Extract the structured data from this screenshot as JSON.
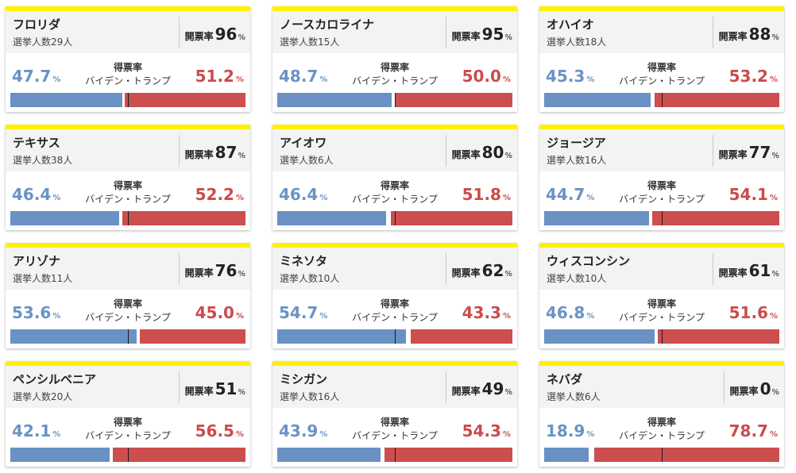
{
  "vote_rate_label": "得票率",
  "candidates_label": "バイデン・トランプ",
  "counted_label": "開票率",
  "percent_sign": "%",
  "colors": {
    "biden": "#6a93c4",
    "trump": "#cc4b4b",
    "accent": "#fff200"
  },
  "states": [
    {
      "name": "フロリダ",
      "electors": "選挙人数29人",
      "counted": "96",
      "biden": "47.7",
      "trump": "51.2"
    },
    {
      "name": "ノースカロライナ",
      "electors": "選挙人数15人",
      "counted": "95",
      "biden": "48.7",
      "trump": "50.0"
    },
    {
      "name": "オハイオ",
      "electors": "選挙人数18人",
      "counted": "88",
      "biden": "45.3",
      "trump": "53.2"
    },
    {
      "name": "テキサス",
      "electors": "選挙人数38人",
      "counted": "87",
      "biden": "46.4",
      "trump": "52.2"
    },
    {
      "name": "アイオワ",
      "electors": "選挙人数6人",
      "counted": "80",
      "biden": "46.4",
      "trump": "51.8"
    },
    {
      "name": "ジョージア",
      "electors": "選挙人数16人",
      "counted": "77",
      "biden": "44.7",
      "trump": "54.1"
    },
    {
      "name": "アリゾナ",
      "electors": "選挙人数11人",
      "counted": "76",
      "biden": "53.6",
      "trump": "45.0"
    },
    {
      "name": "ミネソタ",
      "electors": "選挙人数10人",
      "counted": "62",
      "biden": "54.7",
      "trump": "43.3"
    },
    {
      "name": "ウィスコンシン",
      "electors": "選挙人数10人",
      "counted": "61",
      "biden": "46.8",
      "trump": "51.6"
    },
    {
      "name": "ペンシルベニア",
      "electors": "選挙人数20人",
      "counted": "51",
      "biden": "42.1",
      "trump": "56.5"
    },
    {
      "name": "ミシガン",
      "electors": "選挙人数16人",
      "counted": "49",
      "biden": "43.9",
      "trump": "54.3"
    },
    {
      "name": "ネバダ",
      "electors": "選挙人数6人",
      "counted": "0",
      "biden": "18.9",
      "trump": "78.7"
    }
  ]
}
